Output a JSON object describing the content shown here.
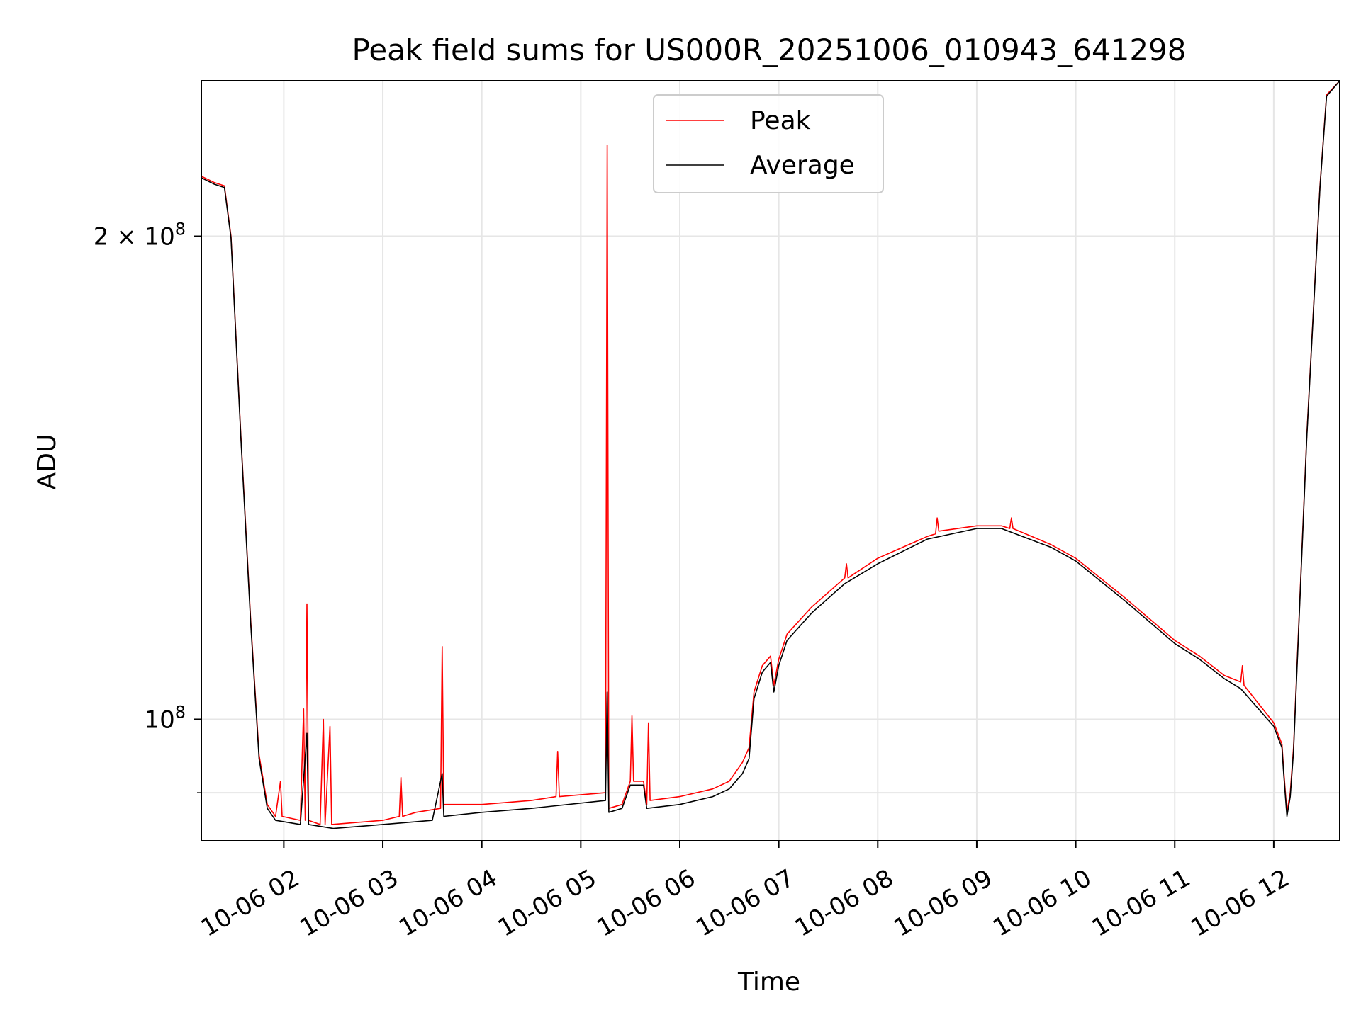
{
  "chart_data": {
    "type": "line",
    "title": "Peak field sums for US000R_20251006_010943_641298",
    "xlabel": "Time",
    "ylabel": "ADU",
    "yscale": "log",
    "ylim": [
      84000000,
      250000000
    ],
    "xlim": [
      "2025-10-06 01:10",
      "2025-10-06 12:40"
    ],
    "grid": true,
    "legend_position": "top-center",
    "x_ticks": [
      {
        "value": "2025-10-06 02:00",
        "label": "10-06 02"
      },
      {
        "value": "2025-10-06 03:00",
        "label": "10-06 03"
      },
      {
        "value": "2025-10-06 04:00",
        "label": "10-06 04"
      },
      {
        "value": "2025-10-06 05:00",
        "label": "10-06 05"
      },
      {
        "value": "2025-10-06 06:00",
        "label": "10-06 06"
      },
      {
        "value": "2025-10-06 07:00",
        "label": "10-06 07"
      },
      {
        "value": "2025-10-06 08:00",
        "label": "10-06 08"
      },
      {
        "value": "2025-10-06 09:00",
        "label": "10-06 09"
      },
      {
        "value": "2025-10-06 10:00",
        "label": "10-06 10"
      },
      {
        "value": "2025-10-06 11:00",
        "label": "10-06 11"
      },
      {
        "value": "2025-10-06 12:00",
        "label": "10-06 12"
      }
    ],
    "y_ticks": [
      {
        "value": 100000000,
        "base": "10",
        "exp": "8"
      },
      {
        "value": 200000000,
        "base": "2 × 10",
        "exp": "8"
      }
    ],
    "y_minor_ticks": [
      90000000
    ],
    "series": [
      {
        "name": "Peak",
        "color": "#ff0000",
        "points": [
          [
            "2025-10-06 01:10",
            218000000
          ],
          [
            "2025-10-06 01:18",
            216000000
          ],
          [
            "2025-10-06 01:24",
            215000000
          ],
          [
            "2025-10-06 01:28",
            200000000
          ],
          [
            "2025-10-06 01:34",
            150000000
          ],
          [
            "2025-10-06 01:40",
            115000000
          ],
          [
            "2025-10-06 01:45",
            95000000
          ],
          [
            "2025-10-06 01:50",
            88500000
          ],
          [
            "2025-10-06 01:55",
            87000000
          ],
          [
            "2025-10-06 01:58",
            91500000
          ],
          [
            "2025-10-06 01:59",
            87000000
          ],
          [
            "2025-10-06 02:10",
            86500000
          ],
          [
            "2025-10-06 02:12",
            101500000
          ],
          [
            "2025-10-06 02:13",
            86500000
          ],
          [
            "2025-10-06 02:14",
            118000000
          ],
          [
            "2025-10-06 02:15",
            86500000
          ],
          [
            "2025-10-06 02:22",
            86000000
          ],
          [
            "2025-10-06 02:24",
            100000000
          ],
          [
            "2025-10-06 02:25",
            86000000
          ],
          [
            "2025-10-06 02:28",
            99000000
          ],
          [
            "2025-10-06 02:29",
            86000000
          ],
          [
            "2025-10-06 03:00",
            86500000
          ],
          [
            "2025-10-06 03:10",
            87000000
          ],
          [
            "2025-10-06 03:11",
            92000000
          ],
          [
            "2025-10-06 03:12",
            87000000
          ],
          [
            "2025-10-06 03:20",
            87500000
          ],
          [
            "2025-10-06 03:35",
            88000000
          ],
          [
            "2025-10-06 03:36",
            111000000
          ],
          [
            "2025-10-06 03:37",
            88500000
          ],
          [
            "2025-10-06 03:40",
            88500000
          ],
          [
            "2025-10-06 04:00",
            88500000
          ],
          [
            "2025-10-06 04:30",
            89000000
          ],
          [
            "2025-10-06 04:45",
            89500000
          ],
          [
            "2025-10-06 04:46",
            95500000
          ],
          [
            "2025-10-06 04:47",
            89500000
          ],
          [
            "2025-10-06 05:15",
            90000000
          ],
          [
            "2025-10-06 05:16",
            228000000
          ],
          [
            "2025-10-06 05:17",
            88000000
          ],
          [
            "2025-10-06 05:25",
            88500000
          ],
          [
            "2025-10-06 05:30",
            91500000
          ],
          [
            "2025-10-06 05:31",
            100500000
          ],
          [
            "2025-10-06 05:32",
            91500000
          ],
          [
            "2025-10-06 05:38",
            91500000
          ],
          [
            "2025-10-06 05:40",
            88500000
          ],
          [
            "2025-10-06 05:41",
            99500000
          ],
          [
            "2025-10-06 05:42",
            89000000
          ],
          [
            "2025-10-06 06:00",
            89500000
          ],
          [
            "2025-10-06 06:20",
            90500000
          ],
          [
            "2025-10-06 06:30",
            91500000
          ],
          [
            "2025-10-06 06:38",
            94000000
          ],
          [
            "2025-10-06 06:42",
            96000000
          ],
          [
            "2025-10-06 06:45",
            104000000
          ],
          [
            "2025-10-06 06:50",
            108000000
          ],
          [
            "2025-10-06 06:55",
            109500000
          ],
          [
            "2025-10-06 06:57",
            105000000
          ],
          [
            "2025-10-06 07:00",
            109000000
          ],
          [
            "2025-10-06 07:05",
            113000000
          ],
          [
            "2025-10-06 07:20",
            117500000
          ],
          [
            "2025-10-06 07:40",
            122500000
          ],
          [
            "2025-10-06 07:41",
            125000000
          ],
          [
            "2025-10-06 07:42",
            122500000
          ],
          [
            "2025-10-06 08:00",
            126000000
          ],
          [
            "2025-10-06 08:30",
            130000000
          ],
          [
            "2025-10-06 08:35",
            130500000
          ],
          [
            "2025-10-06 08:36",
            133500000
          ],
          [
            "2025-10-06 08:37",
            131000000
          ],
          [
            "2025-10-06 09:00",
            132000000
          ],
          [
            "2025-10-06 09:15",
            132000000
          ],
          [
            "2025-10-06 09:20",
            131500000
          ],
          [
            "2025-10-06 09:21",
            133500000
          ],
          [
            "2025-10-06 09:22",
            131500000
          ],
          [
            "2025-10-06 09:45",
            128500000
          ],
          [
            "2025-10-06 10:00",
            126000000
          ],
          [
            "2025-10-06 10:30",
            119000000
          ],
          [
            "2025-10-06 11:00",
            112000000
          ],
          [
            "2025-10-06 11:15",
            109500000
          ],
          [
            "2025-10-06 11:30",
            106500000
          ],
          [
            "2025-10-06 11:40",
            105500000
          ],
          [
            "2025-10-06 11:41",
            108000000
          ],
          [
            "2025-10-06 11:42",
            105000000
          ],
          [
            "2025-10-06 12:00",
            99500000
          ],
          [
            "2025-10-06 12:05",
            96500000
          ],
          [
            "2025-10-06 12:06",
            93000000
          ],
          [
            "2025-10-06 12:08",
            87500000
          ],
          [
            "2025-10-06 12:10",
            90000000
          ],
          [
            "2025-10-06 12:12",
            96000000
          ],
          [
            "2025-10-06 12:20",
            150000000
          ],
          [
            "2025-10-06 12:28",
            215000000
          ],
          [
            "2025-10-06 12:32",
            245000000
          ],
          [
            "2025-10-06 12:40",
            250000000
          ]
        ]
      },
      {
        "name": "Average",
        "color": "#000000",
        "points": [
          [
            "2025-10-06 01:10",
            217500000
          ],
          [
            "2025-10-06 01:18",
            215500000
          ],
          [
            "2025-10-06 01:24",
            214500000
          ],
          [
            "2025-10-06 01:28",
            199500000
          ],
          [
            "2025-10-06 01:34",
            149500000
          ],
          [
            "2025-10-06 01:40",
            114500000
          ],
          [
            "2025-10-06 01:45",
            94500000
          ],
          [
            "2025-10-06 01:50",
            88000000
          ],
          [
            "2025-10-06 01:55",
            86500000
          ],
          [
            "2025-10-06 02:10",
            86000000
          ],
          [
            "2025-10-06 02:14",
            98000000
          ],
          [
            "2025-10-06 02:15",
            86000000
          ],
          [
            "2025-10-06 02:30",
            85500000
          ],
          [
            "2025-10-06 03:00",
            86000000
          ],
          [
            "2025-10-06 03:30",
            86500000
          ],
          [
            "2025-10-06 03:36",
            92500000
          ],
          [
            "2025-10-06 03:37",
            87000000
          ],
          [
            "2025-10-06 04:00",
            87500000
          ],
          [
            "2025-10-06 04:30",
            88000000
          ],
          [
            "2025-10-06 05:15",
            89000000
          ],
          [
            "2025-10-06 05:16",
            104000000
          ],
          [
            "2025-10-06 05:17",
            87500000
          ],
          [
            "2025-10-06 05:25",
            88000000
          ],
          [
            "2025-10-06 05:30",
            91000000
          ],
          [
            "2025-10-06 05:38",
            91000000
          ],
          [
            "2025-10-06 05:40",
            88000000
          ],
          [
            "2025-10-06 06:00",
            88500000
          ],
          [
            "2025-10-06 06:20",
            89500000
          ],
          [
            "2025-10-06 06:30",
            90500000
          ],
          [
            "2025-10-06 06:38",
            92500000
          ],
          [
            "2025-10-06 06:42",
            94500000
          ],
          [
            "2025-10-06 06:45",
            103000000
          ],
          [
            "2025-10-06 06:50",
            107000000
          ],
          [
            "2025-10-06 06:55",
            108500000
          ],
          [
            "2025-10-06 06:57",
            104000000
          ],
          [
            "2025-10-06 07:00",
            108000000
          ],
          [
            "2025-10-06 07:05",
            112000000
          ],
          [
            "2025-10-06 07:20",
            116500000
          ],
          [
            "2025-10-06 07:40",
            121500000
          ],
          [
            "2025-10-06 08:00",
            125000000
          ],
          [
            "2025-10-06 08:30",
            129500000
          ],
          [
            "2025-10-06 09:00",
            131500000
          ],
          [
            "2025-10-06 09:15",
            131500000
          ],
          [
            "2025-10-06 09:45",
            128000000
          ],
          [
            "2025-10-06 10:00",
            125500000
          ],
          [
            "2025-10-06 10:30",
            118500000
          ],
          [
            "2025-10-06 11:00",
            111500000
          ],
          [
            "2025-10-06 11:15",
            109000000
          ],
          [
            "2025-10-06 11:30",
            106000000
          ],
          [
            "2025-10-06 11:40",
            104500000
          ],
          [
            "2025-10-06 12:00",
            99000000
          ],
          [
            "2025-10-06 12:05",
            96000000
          ],
          [
            "2025-10-06 12:06",
            92500000
          ],
          [
            "2025-10-06 12:08",
            87000000
          ],
          [
            "2025-10-06 12:10",
            89500000
          ],
          [
            "2025-10-06 12:12",
            95500000
          ],
          [
            "2025-10-06 12:20",
            149500000
          ],
          [
            "2025-10-06 12:28",
            214500000
          ],
          [
            "2025-10-06 12:32",
            244500000
          ],
          [
            "2025-10-06 12:40",
            250000000
          ]
        ]
      }
    ]
  }
}
